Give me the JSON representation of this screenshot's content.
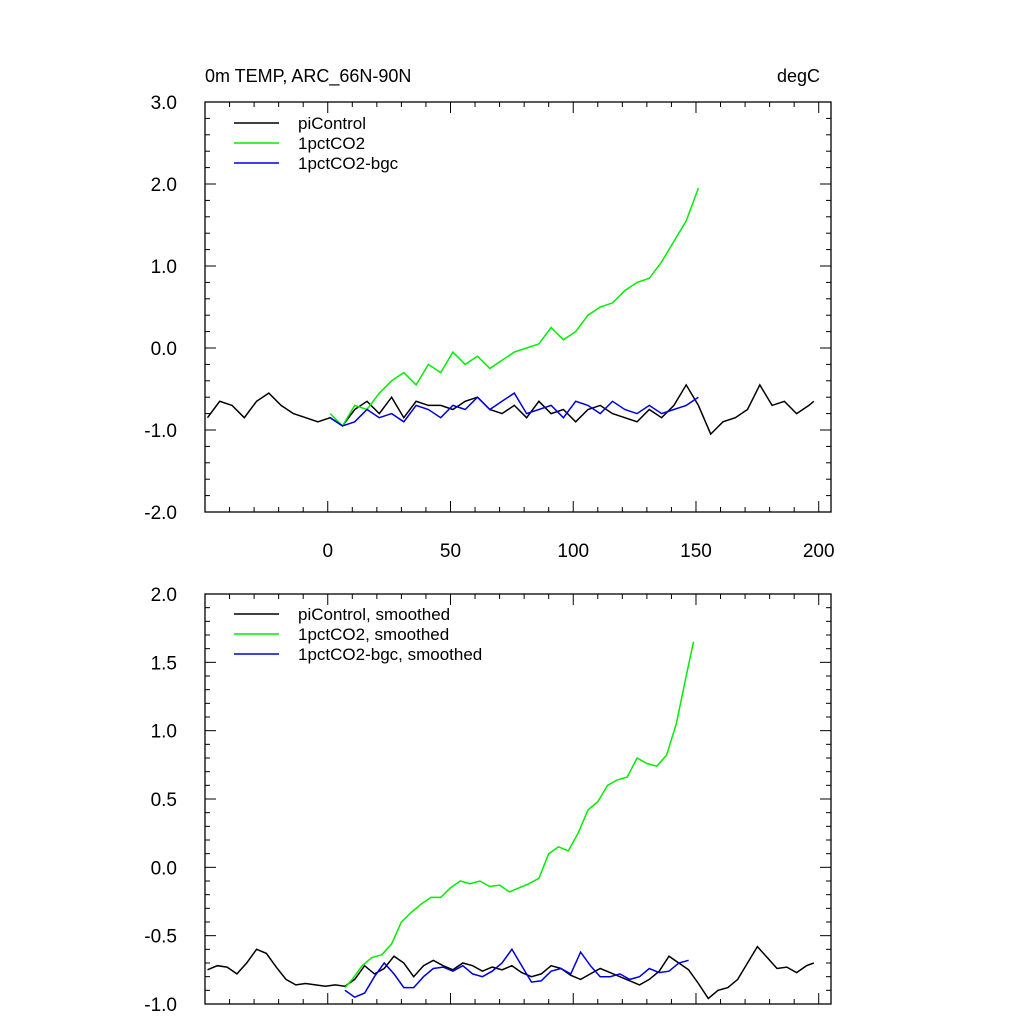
{
  "chart_data": [
    {
      "type": "line",
      "title": "0m TEMP, ARC_66N-90N",
      "units": "degC",
      "xlim": [
        -50,
        205
      ],
      "ylim": [
        -2.0,
        3.0
      ],
      "xticks": [
        0,
        50,
        100,
        150,
        200
      ],
      "xtick_labels": [
        "0",
        "50",
        "100",
        "150",
        "200"
      ],
      "yticks": [
        -2.0,
        -1.0,
        0.0,
        1.0,
        2.0,
        3.0
      ],
      "ytick_labels": [
        "-2.0",
        "-1.0",
        "0.0",
        "1.0",
        "2.0",
        "3.0"
      ],
      "legend_position": "top-left",
      "series": [
        {
          "name": "piControl",
          "color": "#000000",
          "x": [
            -49,
            -44,
            -39,
            -34,
            -29,
            -24,
            -19,
            -14,
            -9,
            -4,
            1,
            6,
            11,
            16,
            21,
            26,
            31,
            36,
            41,
            46,
            51,
            56,
            61,
            66,
            71,
            76,
            81,
            86,
            91,
            96,
            101,
            106,
            111,
            116,
            121,
            126,
            131,
            136,
            141,
            146,
            151,
            156,
            161,
            166,
            171,
            176,
            181,
            186,
            191,
            196,
            198
          ],
          "y": [
            -0.85,
            -0.65,
            -0.7,
            -0.85,
            -0.65,
            -0.55,
            -0.7,
            -0.8,
            -0.85,
            -0.9,
            -0.85,
            -0.95,
            -0.75,
            -0.65,
            -0.8,
            -0.6,
            -0.85,
            -0.65,
            -0.7,
            -0.7,
            -0.75,
            -0.65,
            -0.6,
            -0.75,
            -0.8,
            -0.7,
            -0.85,
            -0.65,
            -0.8,
            -0.75,
            -0.9,
            -0.75,
            -0.7,
            -0.8,
            -0.85,
            -0.9,
            -0.75,
            -0.85,
            -0.7,
            -0.45,
            -0.7,
            -1.05,
            -0.9,
            -0.85,
            -0.75,
            -0.45,
            -0.7,
            -0.65,
            -0.8,
            -0.7,
            -0.65
          ]
        },
        {
          "name": "1pctCO2",
          "color": "#00ee00",
          "x": [
            1,
            6,
            11,
            16,
            21,
            26,
            31,
            36,
            41,
            46,
            51,
            56,
            61,
            66,
            71,
            76,
            81,
            86,
            91,
            96,
            101,
            106,
            111,
            116,
            121,
            126,
            131,
            136,
            141,
            146,
            151
          ],
          "y": [
            -0.8,
            -0.95,
            -0.7,
            -0.75,
            -0.55,
            -0.4,
            -0.3,
            -0.45,
            -0.2,
            -0.3,
            -0.05,
            -0.2,
            -0.1,
            -0.25,
            -0.15,
            -0.05,
            0.0,
            0.05,
            0.25,
            0.1,
            0.2,
            0.4,
            0.5,
            0.55,
            0.7,
            0.8,
            0.85,
            1.05,
            1.3,
            1.55,
            1.95
          ]
        },
        {
          "name": "1pctCO2-bgc",
          "color": "#0000dd",
          "x": [
            1,
            6,
            11,
            16,
            21,
            26,
            31,
            36,
            41,
            46,
            51,
            56,
            61,
            66,
            71,
            76,
            81,
            86,
            91,
            96,
            101,
            106,
            111,
            116,
            121,
            126,
            131,
            136,
            141,
            146,
            151
          ],
          "y": [
            -0.85,
            -0.95,
            -0.9,
            -0.75,
            -0.85,
            -0.8,
            -0.9,
            -0.7,
            -0.75,
            -0.85,
            -0.7,
            -0.75,
            -0.6,
            -0.75,
            -0.65,
            -0.55,
            -0.8,
            -0.75,
            -0.7,
            -0.85,
            -0.65,
            -0.7,
            -0.8,
            -0.65,
            -0.75,
            -0.8,
            -0.7,
            -0.8,
            -0.75,
            -0.7,
            -0.6
          ]
        }
      ]
    },
    {
      "type": "line",
      "title": "",
      "xlim": [
        -50,
        205
      ],
      "ylim": [
        -1.0,
        2.0
      ],
      "xticks": [
        0,
        50,
        100,
        150,
        200
      ],
      "yticks": [
        -1.0,
        -0.5,
        0.0,
        0.5,
        1.0,
        1.5,
        2.0
      ],
      "ytick_labels": [
        "-1.0",
        "-0.5",
        "0.0",
        "0.5",
        "1.0",
        "1.5",
        "2.0"
      ],
      "legend_position": "top-left",
      "series": [
        {
          "name": "piControl, smoothed",
          "color": "#000000",
          "x": [
            -49,
            -45,
            -41,
            -37,
            -33,
            -29,
            -25,
            -21,
            -17,
            -13,
            -9,
            -5,
            -1,
            3,
            7,
            11,
            15,
            19,
            23,
            27,
            31,
            35,
            39,
            43,
            47,
            51,
            55,
            59,
            63,
            67,
            71,
            75,
            79,
            83,
            87,
            91,
            95,
            99,
            103,
            107,
            111,
            115,
            119,
            123,
            127,
            131,
            135,
            139,
            143,
            147,
            151,
            155,
            159,
            163,
            167,
            171,
            175,
            179,
            183,
            187,
            191,
            195,
            198
          ],
          "y": [
            -0.75,
            -0.72,
            -0.73,
            -0.78,
            -0.7,
            -0.6,
            -0.63,
            -0.73,
            -0.82,
            -0.86,
            -0.85,
            -0.86,
            -0.87,
            -0.86,
            -0.87,
            -0.82,
            -0.72,
            -0.78,
            -0.74,
            -0.65,
            -0.7,
            -0.8,
            -0.72,
            -0.68,
            -0.72,
            -0.75,
            -0.7,
            -0.72,
            -0.76,
            -0.73,
            -0.75,
            -0.72,
            -0.77,
            -0.8,
            -0.78,
            -0.72,
            -0.74,
            -0.79,
            -0.82,
            -0.78,
            -0.74,
            -0.77,
            -0.8,
            -0.83,
            -0.86,
            -0.82,
            -0.76,
            -0.65,
            -0.7,
            -0.75,
            -0.85,
            -0.96,
            -0.9,
            -0.88,
            -0.82,
            -0.7,
            -0.58,
            -0.66,
            -0.74,
            -0.73,
            -0.77,
            -0.72,
            -0.7
          ]
        },
        {
          "name": "1pctCO2, smoothed",
          "color": "#00ee00",
          "x": [
            7,
            10,
            14,
            18,
            22,
            26,
            30,
            34,
            38,
            42,
            46,
            50,
            54,
            58,
            62,
            66,
            70,
            74,
            78,
            82,
            86,
            90,
            94,
            98,
            102,
            106,
            110,
            114,
            118,
            122,
            126,
            130,
            134,
            138,
            142,
            146,
            149
          ],
          "y": [
            -0.88,
            -0.82,
            -0.72,
            -0.66,
            -0.64,
            -0.56,
            -0.4,
            -0.33,
            -0.27,
            -0.22,
            -0.22,
            -0.15,
            -0.1,
            -0.12,
            -0.1,
            -0.14,
            -0.13,
            -0.18,
            -0.15,
            -0.12,
            -0.08,
            0.1,
            0.15,
            0.12,
            0.25,
            0.42,
            0.48,
            0.6,
            0.64,
            0.66,
            0.8,
            0.76,
            0.74,
            0.82,
            1.05,
            1.4,
            1.65
          ]
        },
        {
          "name": "1pctCO2-bgc, smoothed",
          "color": "#0000dd",
          "x": [
            7,
            11,
            15,
            19,
            23,
            27,
            31,
            35,
            39,
            43,
            47,
            51,
            55,
            59,
            63,
            67,
            71,
            75,
            79,
            83,
            87,
            91,
            95,
            99,
            103,
            107,
            111,
            115,
            119,
            123,
            127,
            131,
            135,
            139,
            143,
            147
          ],
          "y": [
            -0.9,
            -0.95,
            -0.92,
            -0.8,
            -0.7,
            -0.78,
            -0.88,
            -0.88,
            -0.8,
            -0.74,
            -0.73,
            -0.76,
            -0.72,
            -0.78,
            -0.8,
            -0.76,
            -0.7,
            -0.6,
            -0.72,
            -0.84,
            -0.83,
            -0.76,
            -0.74,
            -0.78,
            -0.62,
            -0.72,
            -0.8,
            -0.8,
            -0.78,
            -0.82,
            -0.8,
            -0.74,
            -0.77,
            -0.76,
            -0.7,
            -0.68
          ]
        }
      ]
    }
  ]
}
